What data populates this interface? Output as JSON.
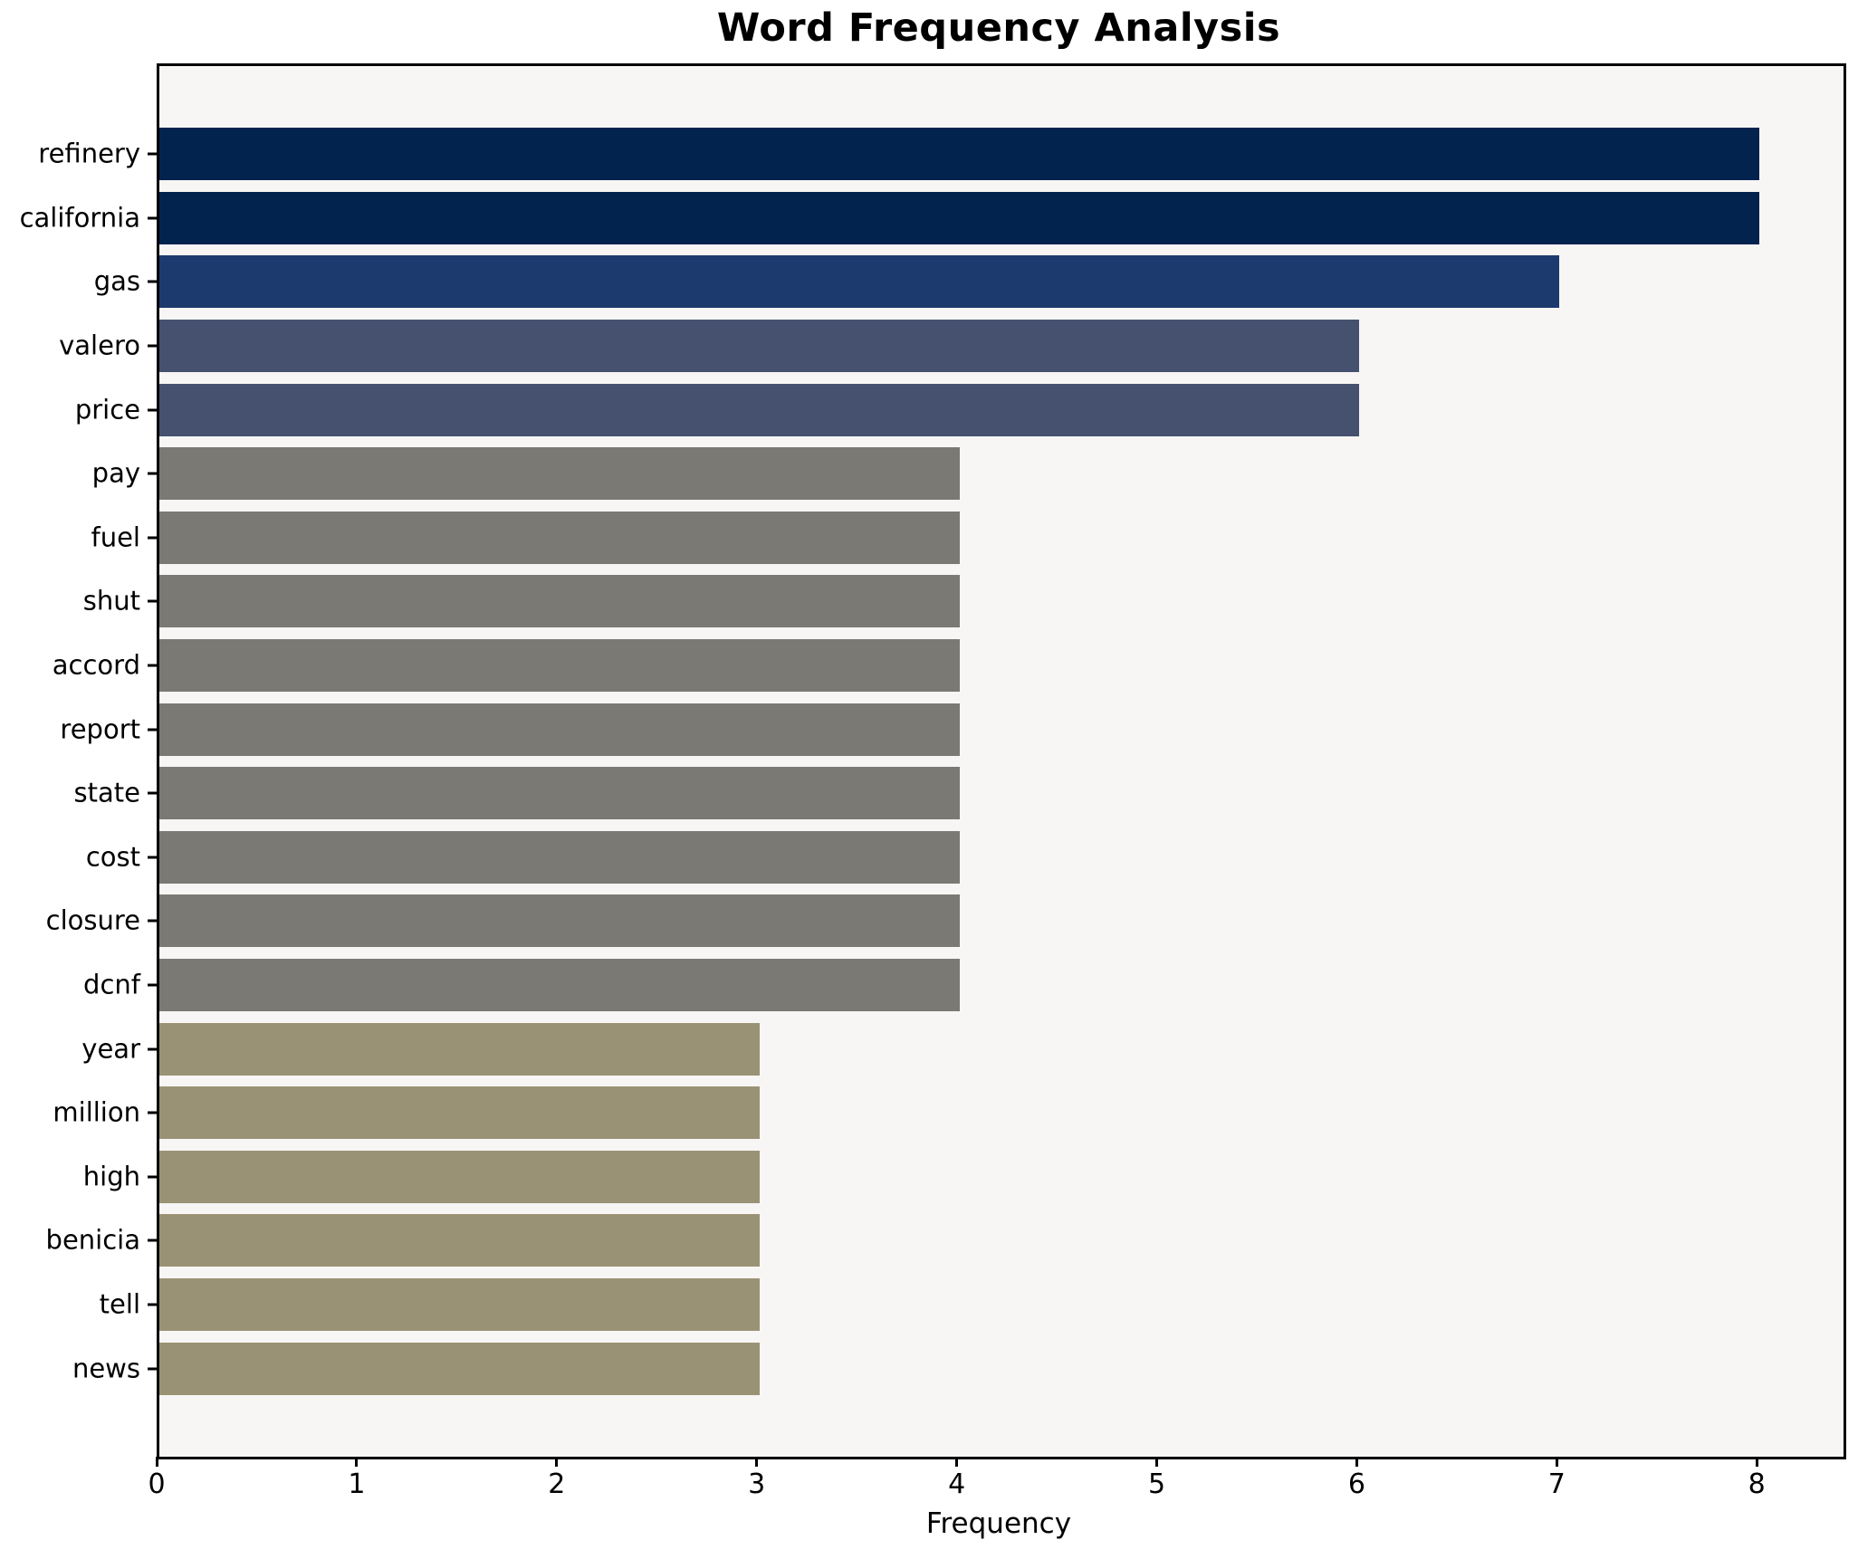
{
  "chart_data": {
    "type": "bar",
    "orientation": "horizontal",
    "title": "Word Frequency Analysis",
    "xlabel": "Frequency",
    "ylabel": "",
    "categories": [
      "refinery",
      "california",
      "gas",
      "valero",
      "price",
      "pay",
      "fuel",
      "shut",
      "accord",
      "report",
      "state",
      "cost",
      "closure",
      "dcnf",
      "year",
      "million",
      "high",
      "benicia",
      "tell",
      "news"
    ],
    "values": [
      8,
      8,
      7,
      6,
      6,
      4,
      4,
      4,
      4,
      4,
      4,
      4,
      4,
      4,
      3,
      3,
      3,
      3,
      3,
      3
    ],
    "bar_colors": [
      "#02234e",
      "#02234e",
      "#1c3a6e",
      "#45516e",
      "#45516e",
      "#7a7974",
      "#7a7974",
      "#7a7974",
      "#7a7974",
      "#7a7974",
      "#7a7974",
      "#7a7974",
      "#7a7974",
      "#7a7974",
      "#9a9274",
      "#9a9274",
      "#9a9274",
      "#9a9274",
      "#9a9274",
      "#9a9274"
    ],
    "x_ticks": [
      "0",
      "1",
      "2",
      "3",
      "4",
      "5",
      "6",
      "7",
      "8"
    ],
    "xlim": [
      0,
      8.42
    ],
    "grid": false,
    "legend": "none",
    "plot_background": "#f7f6f5",
    "figure_background": "#ffffff",
    "spine_color": "#000000",
    "title_color": "#000000",
    "tick_label_color": "#000000"
  }
}
